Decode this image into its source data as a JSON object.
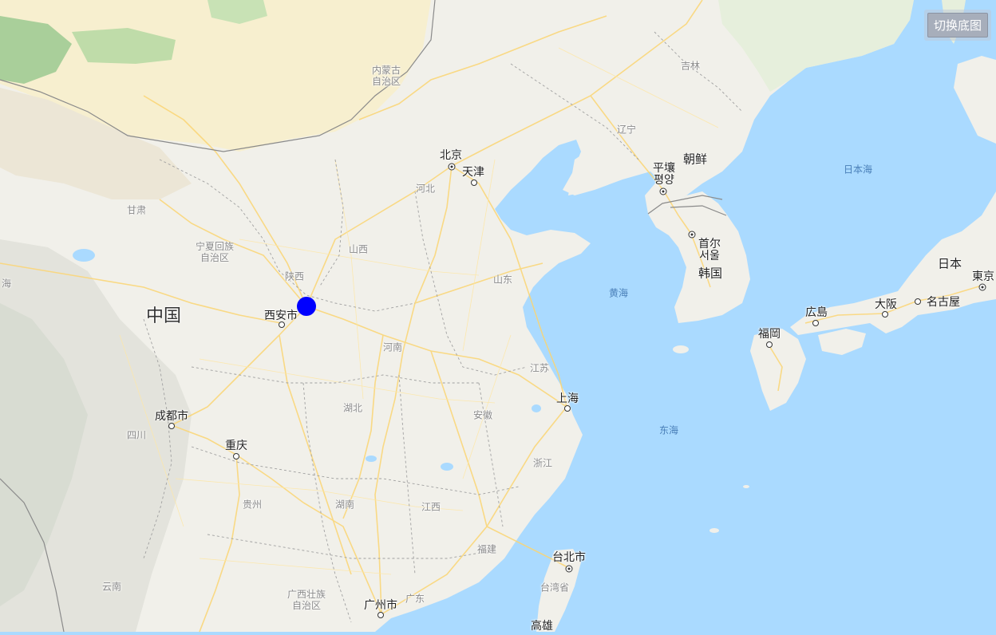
{
  "controls": {
    "switch_basemap_label": "切换底图"
  },
  "map": {
    "countries": {
      "china": "中国",
      "dprk": "朝鲜",
      "korea": "韩国",
      "japan": "日本"
    },
    "seas": {
      "japan_sea": "日本海",
      "yellow_sea": "黄海",
      "east_sea": "东海"
    },
    "provinces": {
      "neimenggu": "内蒙古\n自治区",
      "jilin": "吉林",
      "liaoning": "辽宁",
      "hebei": "河北",
      "gansu": "甘肃",
      "ningxia": "宁夏回族\n自治区",
      "shanxi": "山西",
      "shaanxi": "陕西",
      "shandong": "山东",
      "henan": "河南",
      "jiangsu": "江苏",
      "hubei": "湖北",
      "anhui": "安徽",
      "sichuan": "四川",
      "zhejiang": "浙江",
      "guizhou": "贵州",
      "hunan": "湖南",
      "jiangxi": "江西",
      "fujian": "福建",
      "yunnan": "云南",
      "guangxi": "广西壮族\n自治区",
      "guangdong": "广东",
      "taiwan": "台湾省",
      "qinghai": "海"
    },
    "cities": {
      "beijing": "北京",
      "tianjin": "天津",
      "pyongyang": "平壤\n평양",
      "seoul": "首尔\n서울",
      "xian": "西安市",
      "shanghai": "上海",
      "chengdu": "成都市",
      "chongqing": "重庆",
      "taipei": "台北市",
      "guangzhou": "广州市",
      "kaohsiung": "高雄",
      "hiroshima": "広島",
      "osaka": "大阪",
      "nagoya": "名古屋",
      "tokyo": "東京",
      "fukuoka": "福岡"
    }
  },
  "marker": {
    "color": "#0000ff"
  }
}
